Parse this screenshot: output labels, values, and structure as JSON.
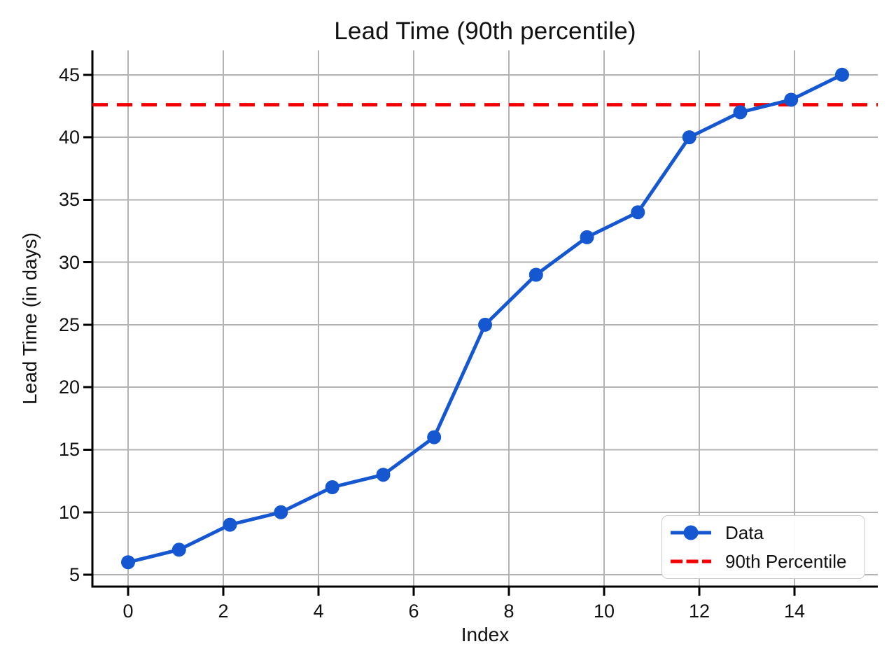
{
  "chart_data": {
    "type": "line",
    "title": "Lead Time (90th percentile)",
    "xlabel": "Index",
    "ylabel": "Lead Time (in days)",
    "x": [
      0,
      1.07,
      2.14,
      3.21,
      4.29,
      5.36,
      6.43,
      7.5,
      8.57,
      9.64,
      10.71,
      11.79,
      12.86,
      13.93,
      15
    ],
    "y": [
      6,
      7,
      9,
      10,
      12,
      13,
      16,
      25,
      29,
      32,
      34,
      40,
      42,
      43,
      45
    ],
    "series_name": "Data",
    "percentile_line": {
      "label": "90th Percentile",
      "value": 42.6,
      "style": "dashed"
    },
    "xlim": [
      -0.75,
      15.75
    ],
    "ylim": [
      4.05,
      46.95
    ],
    "xticks": [
      0,
      2,
      4,
      6,
      8,
      10,
      12,
      14
    ],
    "yticks": [
      5,
      10,
      15,
      20,
      25,
      30,
      35,
      40,
      45
    ],
    "grid": true,
    "legend_position": "lower right",
    "legend": [
      {
        "label": "Data",
        "style": "solid-line-circle-marker"
      },
      {
        "label": "90th Percentile",
        "style": "dashed-line"
      }
    ],
    "colors": {
      "series": "#1557d0",
      "percentile": "#f40000",
      "grid": "#b3b3b3",
      "axis": "#000000",
      "text": "#111111",
      "background": "#ffffff",
      "legend_border": "#cccccc"
    }
  }
}
